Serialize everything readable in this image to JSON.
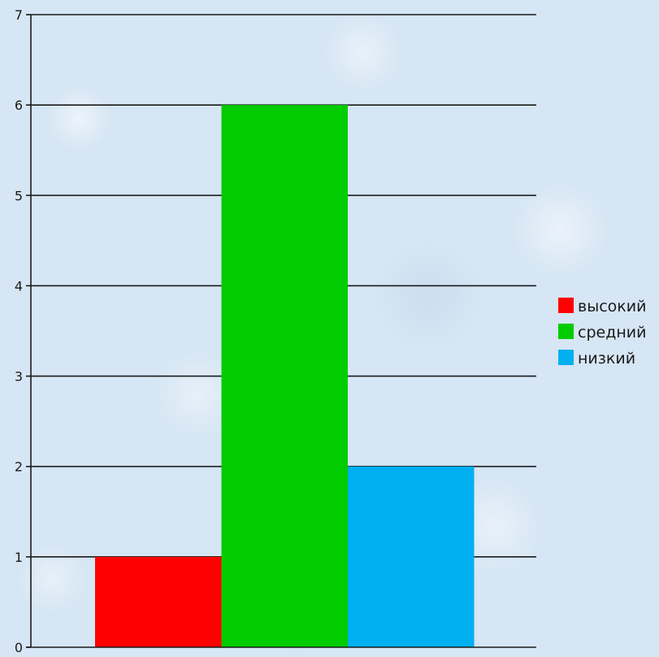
{
  "chart_data": {
    "type": "bar",
    "title": "",
    "xlabel": "",
    "ylabel": "",
    "ylim": [
      0,
      7
    ],
    "yticks": [
      "0",
      "1",
      "2",
      "3",
      "4",
      "5",
      "6",
      "7"
    ],
    "grid": true,
    "legend_position": "right",
    "series": [
      {
        "name": "высокий",
        "value": 1,
        "color": "#ff0000"
      },
      {
        "name": "средний",
        "value": 6,
        "color": "#00cc00"
      },
      {
        "name": "низкий",
        "value": 2,
        "color": "#00b0f0"
      }
    ]
  }
}
